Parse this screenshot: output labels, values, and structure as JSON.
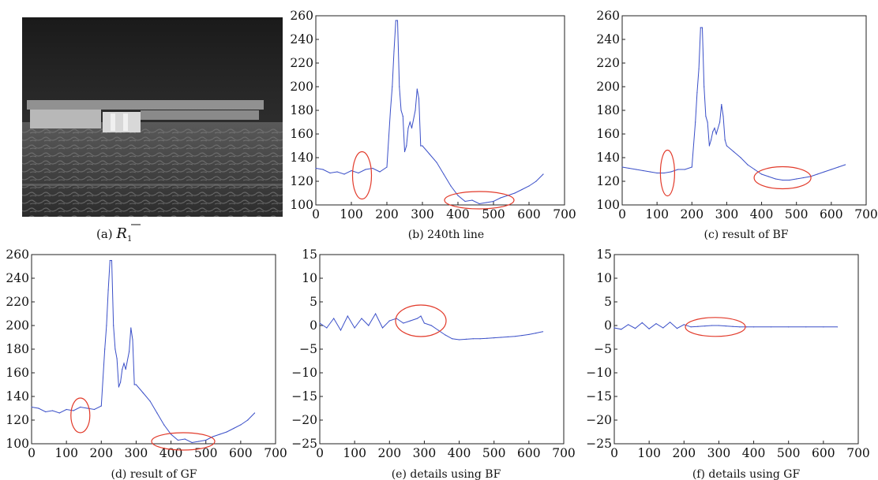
{
  "panel_a": {
    "caption_prefix": "(a) ",
    "caption_symbol": "R",
    "caption_subscript": "1"
  },
  "colors": {
    "series": "#3a4fc8",
    "highlight_ellipse": "#e23a2a",
    "frame": "#222222"
  },
  "chart_data": [
    {
      "id": "b",
      "type": "line",
      "caption": "(b) 240th line",
      "xlim": [
        0,
        700
      ],
      "ylim": [
        100,
        260
      ],
      "xticks": [
        0,
        100,
        200,
        300,
        400,
        500,
        600,
        700
      ],
      "yticks": [
        100,
        120,
        140,
        160,
        180,
        200,
        220,
        240,
        260
      ],
      "series": [
        {
          "x": [
            0,
            20,
            40,
            60,
            80,
            100,
            120,
            140,
            160,
            180,
            200,
            210,
            215,
            220,
            225,
            230,
            235,
            240,
            245,
            250,
            255,
            260,
            265,
            270,
            280,
            285,
            290,
            295,
            300,
            320,
            340,
            360,
            380,
            400,
            420,
            440,
            460,
            480,
            500,
            520,
            540,
            560,
            580,
            600,
            620,
            640
          ],
          "values": [
            131,
            130,
            127,
            128,
            126,
            129,
            127,
            130,
            131,
            128,
            132,
            180,
            200,
            230,
            256,
            256,
            200,
            180,
            175,
            145,
            150,
            165,
            170,
            165,
            180,
            198,
            190,
            150,
            150,
            143,
            136,
            126,
            116,
            108,
            103,
            104,
            101,
            102,
            103,
            106,
            108,
            110,
            113,
            116,
            120,
            126
          ]
        }
      ],
      "highlights": [
        {
          "cx": 130,
          "cy": 125
        },
        {
          "cx": 460,
          "cy": 104
        }
      ]
    },
    {
      "id": "c",
      "type": "line",
      "caption": "(c) result of BF",
      "xlim": [
        0,
        700
      ],
      "ylim": [
        100,
        260
      ],
      "xticks": [
        0,
        100,
        200,
        300,
        400,
        500,
        600,
        700
      ],
      "yticks": [
        100,
        120,
        140,
        160,
        180,
        200,
        220,
        240,
        260
      ],
      "series": [
        {
          "x": [
            0,
            20,
            40,
            60,
            80,
            100,
            120,
            140,
            160,
            180,
            200,
            210,
            215,
            220,
            225,
            230,
            235,
            240,
            245,
            250,
            255,
            260,
            265,
            270,
            280,
            285,
            290,
            295,
            300,
            320,
            340,
            360,
            380,
            400,
            420,
            440,
            460,
            480,
            500,
            520,
            540,
            560,
            580,
            600,
            620,
            640
          ],
          "values": [
            132,
            131,
            130,
            129,
            128,
            127,
            127,
            128,
            130,
            130,
            132,
            170,
            195,
            215,
            250,
            250,
            200,
            175,
            170,
            150,
            155,
            162,
            165,
            160,
            170,
            185,
            175,
            155,
            150,
            145,
            140,
            134,
            130,
            126,
            124,
            122,
            121,
            121,
            122,
            123,
            124,
            126,
            128,
            130,
            132,
            134
          ]
        }
      ],
      "highlights": [
        {
          "cx": 130,
          "cy": 127
        },
        {
          "cx": 460,
          "cy": 123
        }
      ]
    },
    {
      "id": "d",
      "type": "line",
      "caption": "(d) result of GF",
      "xlim": [
        0,
        700
      ],
      "ylim": [
        100,
        260
      ],
      "xticks": [
        0,
        100,
        200,
        300,
        400,
        500,
        600,
        700
      ],
      "yticks": [
        100,
        120,
        140,
        160,
        180,
        200,
        220,
        240,
        260
      ],
      "series": [
        {
          "x": [
            0,
            20,
            40,
            60,
            80,
            100,
            120,
            140,
            160,
            180,
            200,
            210,
            215,
            220,
            225,
            230,
            235,
            240,
            245,
            250,
            255,
            260,
            265,
            270,
            280,
            285,
            290,
            295,
            300,
            320,
            340,
            360,
            380,
            400,
            420,
            440,
            460,
            480,
            500,
            520,
            540,
            560,
            580,
            600,
            620,
            640
          ],
          "values": [
            131,
            130,
            127,
            128,
            126,
            129,
            128,
            131,
            130,
            129,
            132,
            180,
            200,
            230,
            255,
            255,
            200,
            180,
            172,
            148,
            152,
            163,
            168,
            163,
            178,
            198,
            188,
            150,
            150,
            143,
            136,
            126,
            116,
            108,
            103,
            104,
            101,
            102,
            103,
            106,
            108,
            110,
            113,
            116,
            120,
            126
          ]
        }
      ],
      "highlights": [
        {
          "cx": 140,
          "cy": 124
        },
        {
          "cx": 435,
          "cy": 102
        }
      ]
    },
    {
      "id": "e",
      "type": "line",
      "caption": "(e) details using BF",
      "xlim": [
        0,
        700
      ],
      "ylim": [
        -25,
        15
      ],
      "xticks": [
        0,
        100,
        200,
        300,
        400,
        500,
        600,
        700
      ],
      "yticks": [
        -25,
        -20,
        -15,
        -10,
        -5,
        0,
        5,
        10,
        15
      ],
      "series": [
        {
          "x": [
            0,
            20,
            40,
            60,
            80,
            100,
            120,
            140,
            160,
            180,
            200,
            220,
            240,
            260,
            280,
            290,
            300,
            320,
            340,
            360,
            380,
            400,
            420,
            440,
            460,
            480,
            500,
            520,
            540,
            560,
            580,
            600,
            620,
            640
          ],
          "values": [
            0.5,
            -0.5,
            1.5,
            -1,
            2,
            -0.5,
            1.5,
            0,
            2.5,
            -0.5,
            1,
            1.5,
            0.5,
            1,
            1.5,
            2,
            0.5,
            0,
            -1,
            -2,
            -2.8,
            -3,
            -2.9,
            -2.8,
            -2.8,
            -2.7,
            -2.6,
            -2.5,
            -2.4,
            -2.3,
            -2.1,
            -1.9,
            -1.6,
            -1.3
          ]
        }
      ],
      "highlights": [
        {
          "cx": 290,
          "cy": 1
        }
      ]
    },
    {
      "id": "f",
      "type": "line",
      "caption": "(f) details using GF",
      "xlim": [
        0,
        700
      ],
      "ylim": [
        -25,
        15
      ],
      "xticks": [
        0,
        100,
        200,
        300,
        400,
        500,
        600,
        700
      ],
      "yticks": [
        -25,
        -20,
        -15,
        -10,
        -5,
        0,
        5,
        10,
        15
      ],
      "series": [
        {
          "x": [
            0,
            20,
            40,
            60,
            80,
            100,
            120,
            140,
            160,
            180,
            200,
            220,
            240,
            260,
            280,
            300,
            320,
            340,
            360,
            380,
            400,
            450,
            500,
            550,
            600,
            640
          ],
          "values": [
            -0.5,
            -0.8,
            0.2,
            -0.6,
            0.6,
            -0.7,
            0.4,
            -0.5,
            0.7,
            -0.6,
            0.2,
            -0.3,
            -0.2,
            -0.1,
            0,
            0,
            -0.1,
            -0.2,
            -0.3,
            -0.3,
            -0.3,
            -0.3,
            -0.3,
            -0.3,
            -0.3,
            -0.3
          ]
        }
      ],
      "highlights": [
        {
          "cx": 290,
          "cy": -0.3
        }
      ]
    }
  ]
}
